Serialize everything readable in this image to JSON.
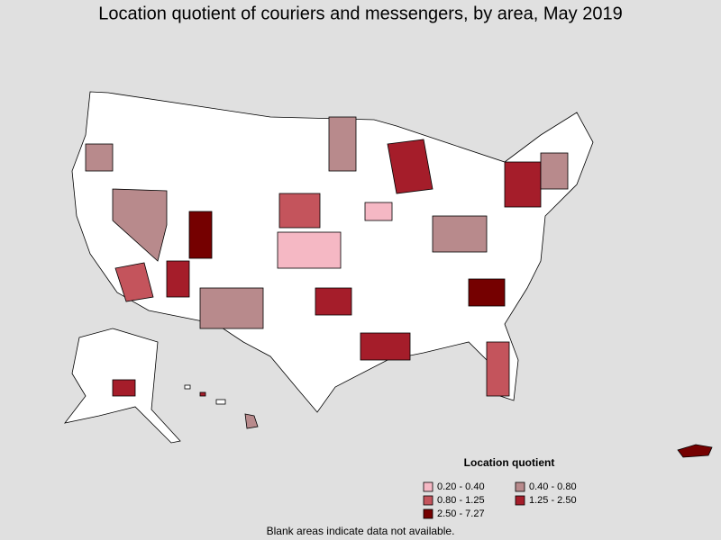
{
  "title": "Location quotient of couriers and messengers, by area, May 2019",
  "legend": {
    "title": "Location quotient",
    "items": [
      {
        "label": "0.20 - 0.40",
        "color": "#f5b8c4"
      },
      {
        "label": "0.40 - 0.80",
        "color": "#b88a8c"
      },
      {
        "label": "0.80 - 1.25",
        "color": "#c4545c"
      },
      {
        "label": "1.25 - 2.50",
        "color": "#a51d2a"
      },
      {
        "label": "2.50 - 7.27",
        "color": "#750000"
      }
    ]
  },
  "note": "Blank areas indicate data not available."
}
